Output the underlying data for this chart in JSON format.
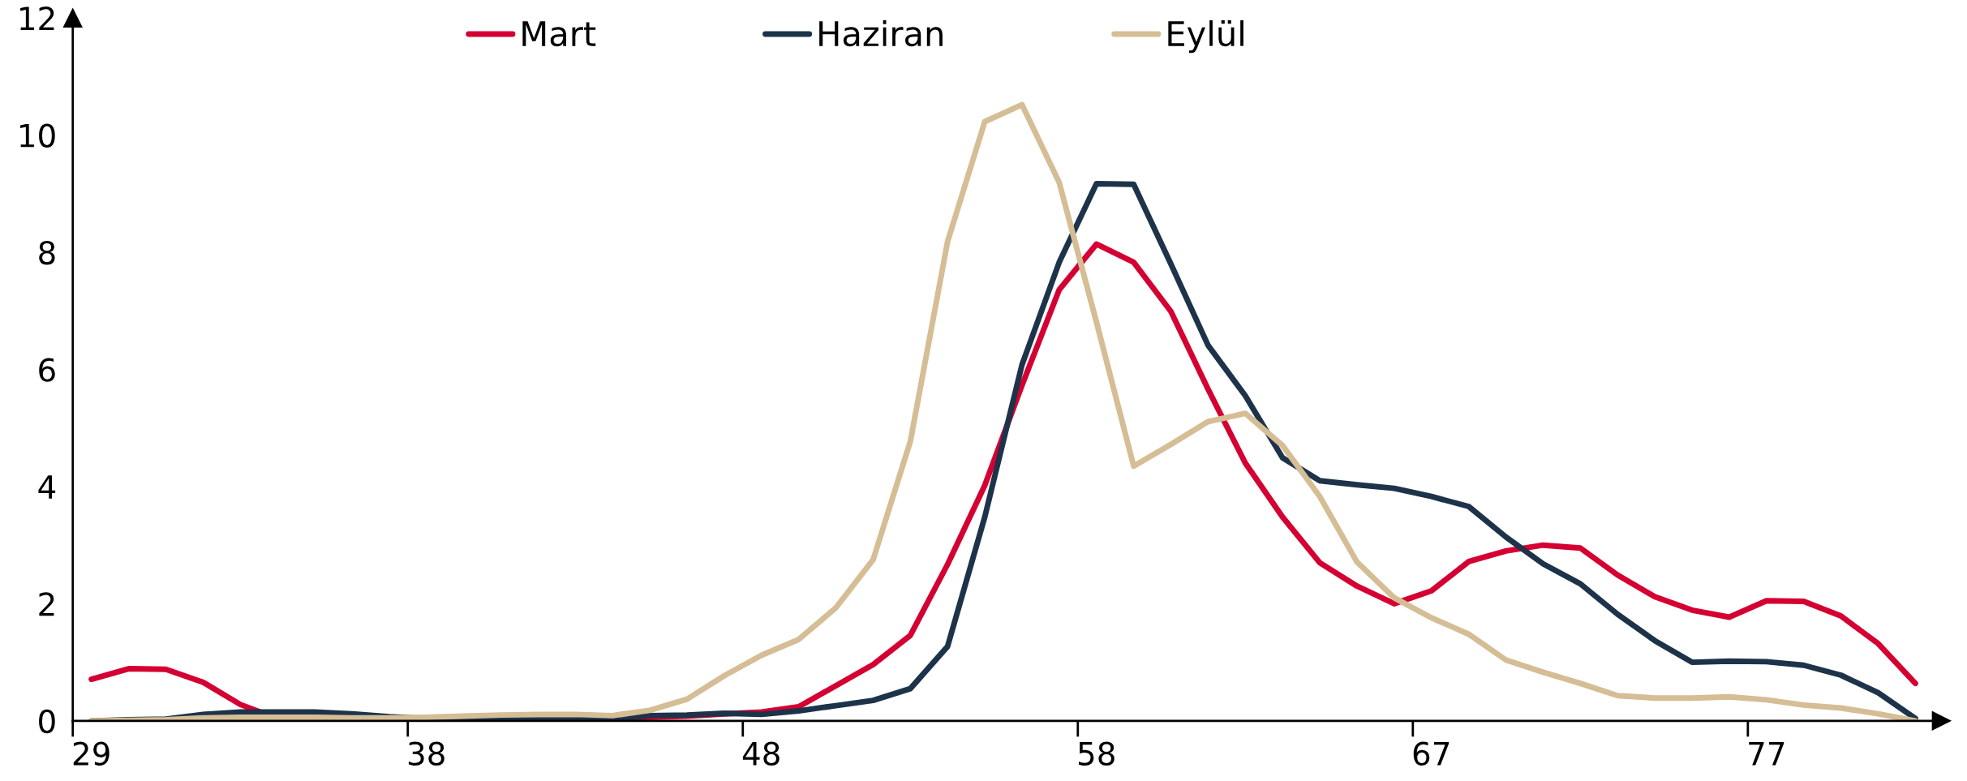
{
  "chart_data": {
    "type": "line",
    "categories": [
      "29",
      null,
      null,
      null,
      null,
      null,
      null,
      null,
      null,
      "38",
      null,
      null,
      null,
      null,
      null,
      null,
      null,
      null,
      "48",
      null,
      null,
      null,
      null,
      null,
      null,
      null,
      null,
      "58",
      null,
      null,
      null,
      null,
      null,
      null,
      null,
      null,
      "67",
      null,
      null,
      null,
      null,
      null,
      null,
      null,
      null,
      "77",
      null,
      null,
      null,
      null
    ],
    "series": [
      {
        "name": "Mart",
        "color": "#d50032",
        "values": [
          0.71,
          0.89,
          0.88,
          0.66,
          0.28,
          0.04,
          0.02,
          0.02,
          0.02,
          0.01,
          0.0,
          0.0,
          0.01,
          0.02,
          0.03,
          0.06,
          0.08,
          0.12,
          0.15,
          0.24,
          0.6,
          0.96,
          1.46,
          2.67,
          4.02,
          5.73,
          7.36,
          8.14,
          7.83,
          6.99,
          5.66,
          4.4,
          3.48,
          2.7,
          2.3,
          2.0,
          2.22,
          2.72,
          2.9,
          3.0,
          2.95,
          2.49,
          2.12,
          1.89,
          1.77,
          2.05,
          2.04,
          1.79,
          1.32,
          0.64
        ]
      },
      {
        "name": "Haziran",
        "color": "#1d334a",
        "values": [
          0.0,
          0.02,
          0.03,
          0.11,
          0.15,
          0.15,
          0.15,
          0.12,
          0.07,
          0.04,
          0.03,
          0.03,
          0.03,
          0.03,
          0.03,
          0.09,
          0.1,
          0.13,
          0.11,
          0.17,
          0.26,
          0.35,
          0.55,
          1.27,
          3.48,
          6.08,
          7.83,
          9.17,
          9.16,
          7.8,
          6.41,
          5.55,
          4.49,
          4.1,
          4.03,
          3.97,
          3.83,
          3.66,
          3.14,
          2.68,
          2.34,
          1.82,
          1.37,
          1.0,
          1.02,
          1.01,
          0.95,
          0.78,
          0.48,
          0.04
        ]
      },
      {
        "name": "Eylül",
        "color": "#d5bd95",
        "values": [
          0.0,
          0.01,
          0.02,
          0.05,
          0.06,
          0.06,
          0.06,
          0.05,
          0.05,
          0.06,
          0.08,
          0.1,
          0.11,
          0.11,
          0.09,
          0.18,
          0.37,
          0.77,
          1.12,
          1.39,
          1.93,
          2.75,
          4.77,
          8.18,
          10.23,
          10.52,
          9.19,
          6.81,
          4.35,
          4.72,
          5.11,
          5.25,
          4.7,
          3.83,
          2.71,
          2.1,
          1.76,
          1.48,
          1.04,
          0.83,
          0.64,
          0.43,
          0.39,
          0.39,
          0.41,
          0.36,
          0.27,
          0.22,
          0.12,
          0.0
        ]
      }
    ],
    "ylim": [
      0,
      12
    ],
    "yticks": [
      0,
      2,
      4,
      6,
      8,
      10,
      12
    ],
    "legend": "top",
    "grid": false
  }
}
